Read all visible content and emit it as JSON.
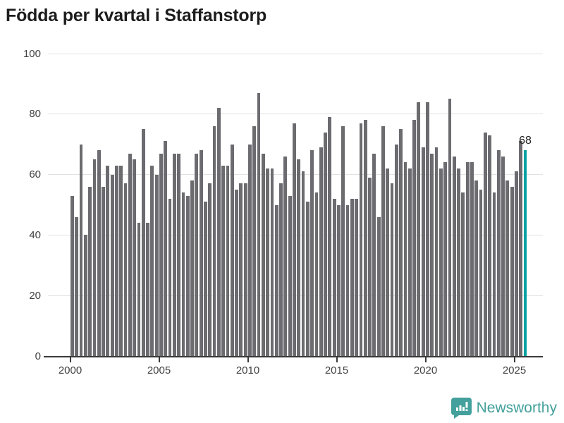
{
  "header": {
    "title": "Födda per kvartal i Staffanstorp"
  },
  "footer": {
    "brand": "Newsworthy",
    "brand_color": "#43a09c"
  },
  "colors": {
    "bar": "#6b6b70",
    "highlight": "#00a1a1",
    "axis": "#3a3a3a",
    "grid": "#e2e2e2",
    "tick_text": "#414141",
    "title_text": "#1d1d1d"
  },
  "chart_data": {
    "type": "bar",
    "title": "Födda per kvartal i Staffanstorp",
    "xlabel": "",
    "ylabel": "",
    "ylim": [
      0,
      100
    ],
    "yticks": [
      0,
      20,
      40,
      60,
      80,
      100
    ],
    "xticks": [
      "2000",
      "2005",
      "2010",
      "2015",
      "2020",
      "2025"
    ],
    "grid": true,
    "legend": "none",
    "bar_color": "#6b6b70",
    "highlight_color": "#00a1a1",
    "highlight_index": 102,
    "highlight_label": "68",
    "categories": [
      "2000 Q1",
      "2000 Q2",
      "2000 Q3",
      "2000 Q4",
      "2001 Q1",
      "2001 Q2",
      "2001 Q3",
      "2001 Q4",
      "2002 Q1",
      "2002 Q2",
      "2002 Q3",
      "2002 Q4",
      "2003 Q1",
      "2003 Q2",
      "2003 Q3",
      "2003 Q4",
      "2004 Q1",
      "2004 Q2",
      "2004 Q3",
      "2004 Q4",
      "2005 Q1",
      "2005 Q2",
      "2005 Q3",
      "2005 Q4",
      "2006 Q1",
      "2006 Q2",
      "2006 Q3",
      "2006 Q4",
      "2007 Q1",
      "2007 Q2",
      "2007 Q3",
      "2007 Q4",
      "2008 Q1",
      "2008 Q2",
      "2008 Q3",
      "2008 Q4",
      "2009 Q1",
      "2009 Q2",
      "2009 Q3",
      "2009 Q4",
      "2010 Q1",
      "2010 Q2",
      "2010 Q3",
      "2010 Q4",
      "2011 Q1",
      "2011 Q2",
      "2011 Q3",
      "2011 Q4",
      "2012 Q1",
      "2012 Q2",
      "2012 Q3",
      "2012 Q4",
      "2013 Q1",
      "2013 Q2",
      "2013 Q3",
      "2013 Q4",
      "2014 Q1",
      "2014 Q2",
      "2014 Q3",
      "2014 Q4",
      "2015 Q1",
      "2015 Q2",
      "2015 Q3",
      "2015 Q4",
      "2016 Q1",
      "2016 Q2",
      "2016 Q3",
      "2016 Q4",
      "2017 Q1",
      "2017 Q2",
      "2017 Q3",
      "2017 Q4",
      "2018 Q1",
      "2018 Q2",
      "2018 Q3",
      "2018 Q4",
      "2019 Q1",
      "2019 Q2",
      "2019 Q3",
      "2019 Q4",
      "2020 Q1",
      "2020 Q2",
      "2020 Q3",
      "2020 Q4",
      "2021 Q1",
      "2021 Q2",
      "2021 Q3",
      "2021 Q4",
      "2022 Q1",
      "2022 Q2",
      "2022 Q3",
      "2022 Q4",
      "2023 Q1",
      "2023 Q2",
      "2023 Q3",
      "2023 Q4",
      "2024 Q1",
      "2024 Q2",
      "2024 Q3",
      "2024 Q4",
      "2025 Q1",
      "2025 Q2",
      "2025 Q3"
    ],
    "values": [
      53,
      46,
      70,
      40,
      56,
      65,
      68,
      56,
      63,
      60,
      63,
      63,
      57,
      67,
      65,
      44,
      75,
      44,
      63,
      60,
      67,
      71,
      52,
      67,
      67,
      54,
      53,
      58,
      67,
      68,
      51,
      57,
      76,
      82,
      63,
      63,
      70,
      55,
      57,
      57,
      70,
      76,
      87,
      67,
      62,
      62,
      50,
      57,
      66,
      53,
      77,
      65,
      61,
      51,
      68,
      54,
      69,
      74,
      79,
      52,
      50,
      76,
      50,
      52,
      52,
      77,
      78,
      59,
      67,
      46,
      76,
      62,
      57,
      70,
      75,
      64,
      62,
      78,
      84,
      69,
      84,
      67,
      69,
      62,
      64,
      85,
      66,
      62,
      54,
      64,
      64,
      58,
      55,
      74,
      73,
      54,
      68,
      66,
      58,
      56,
      61,
      71,
      68
    ]
  }
}
